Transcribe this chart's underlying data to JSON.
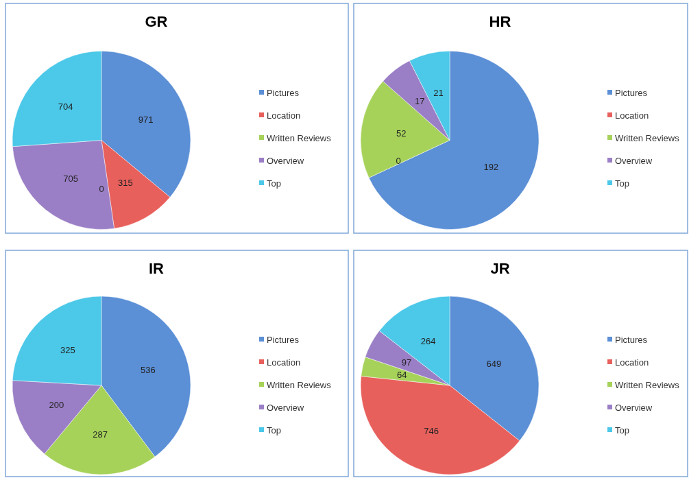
{
  "chart_data": [
    {
      "type": "pie",
      "title": "GR",
      "categories": [
        "Pictures",
        "Location",
        "Written Reviews",
        "Overview",
        "Top"
      ],
      "values": [
        971,
        315,
        0,
        705,
        704
      ],
      "value_labels": [
        "971",
        "315",
        "0",
        "705",
        "704"
      ],
      "colors": [
        "#5b8fd6",
        "#e8605c",
        "#a6d25a",
        "#9b7fc6",
        "#4cc8e8"
      ],
      "legend": "right"
    },
    {
      "type": "pie",
      "title": "HR",
      "categories": [
        "Pictures",
        "Location",
        "Written Reviews",
        "Overview",
        "Top"
      ],
      "values": [
        192,
        0,
        52,
        17,
        21
      ],
      "value_labels": [
        "192",
        "0",
        "52",
        "17",
        "21"
      ],
      "colors": [
        "#5b8fd6",
        "#e8605c",
        "#a6d25a",
        "#9b7fc6",
        "#4cc8e8"
      ],
      "legend": "right"
    },
    {
      "type": "pie",
      "title": "IR",
      "categories": [
        "Pictures",
        "Location",
        "Written Reviews",
        "Overview",
        "Top"
      ],
      "values": [
        536,
        0,
        287,
        200,
        325
      ],
      "value_labels": [
        "536",
        null,
        "287",
        "200",
        "325"
      ],
      "colors": [
        "#5b8fd6",
        "#e8605c",
        "#a6d25a",
        "#9b7fc6",
        "#4cc8e8"
      ],
      "legend": "right"
    },
    {
      "type": "pie",
      "title": "JR",
      "categories": [
        "Pictures",
        "Location",
        "Written Reviews",
        "Overview",
        "Top"
      ],
      "values": [
        649,
        746,
        64,
        97,
        264
      ],
      "colors": [
        "#5b8fd6",
        "#e8605c",
        "#a6d25a",
        "#9b7fc6",
        "#4cc8e8"
      ],
      "data_labels": true,
      "legend": "right"
    }
  ]
}
